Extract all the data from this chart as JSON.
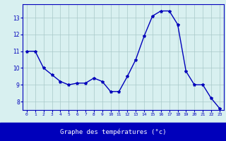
{
  "hours": [
    0,
    1,
    2,
    3,
    4,
    5,
    6,
    7,
    8,
    9,
    10,
    11,
    12,
    13,
    14,
    15,
    16,
    17,
    18,
    19,
    20,
    21,
    22,
    23
  ],
  "temperatures": [
    11.0,
    11.0,
    10.0,
    9.6,
    9.2,
    9.0,
    9.1,
    9.1,
    9.4,
    9.2,
    8.6,
    8.6,
    9.5,
    10.5,
    11.9,
    13.1,
    13.4,
    13.4,
    12.6,
    9.8,
    9.0,
    9.0,
    8.2,
    7.6
  ],
  "line_color": "#0000bb",
  "marker": "*",
  "marker_size": 3,
  "bg_color": "#d8f0f0",
  "grid_color": "#a8c8c8",
  "xlabel": "Graphe des températures (°c)",
  "tick_color": "#0000bb",
  "axis_label_bg": "#0000bb",
  "ylim": [
    7.5,
    13.8
  ],
  "xlim": [
    -0.5,
    23.5
  ],
  "yticks": [
    8,
    9,
    10,
    11,
    12,
    13
  ],
  "xticks": [
    0,
    1,
    2,
    3,
    4,
    5,
    6,
    7,
    8,
    9,
    10,
    11,
    12,
    13,
    14,
    15,
    16,
    17,
    18,
    19,
    20,
    21,
    22,
    23
  ],
  "xtick_labels": [
    "0",
    "1",
    "2",
    "3",
    "4",
    "5",
    "6",
    "7",
    "8",
    "9",
    "10",
    "11",
    "12",
    "13",
    "14",
    "15",
    "16",
    "17",
    "18",
    "19",
    "20",
    "21",
    "22",
    "23"
  ]
}
